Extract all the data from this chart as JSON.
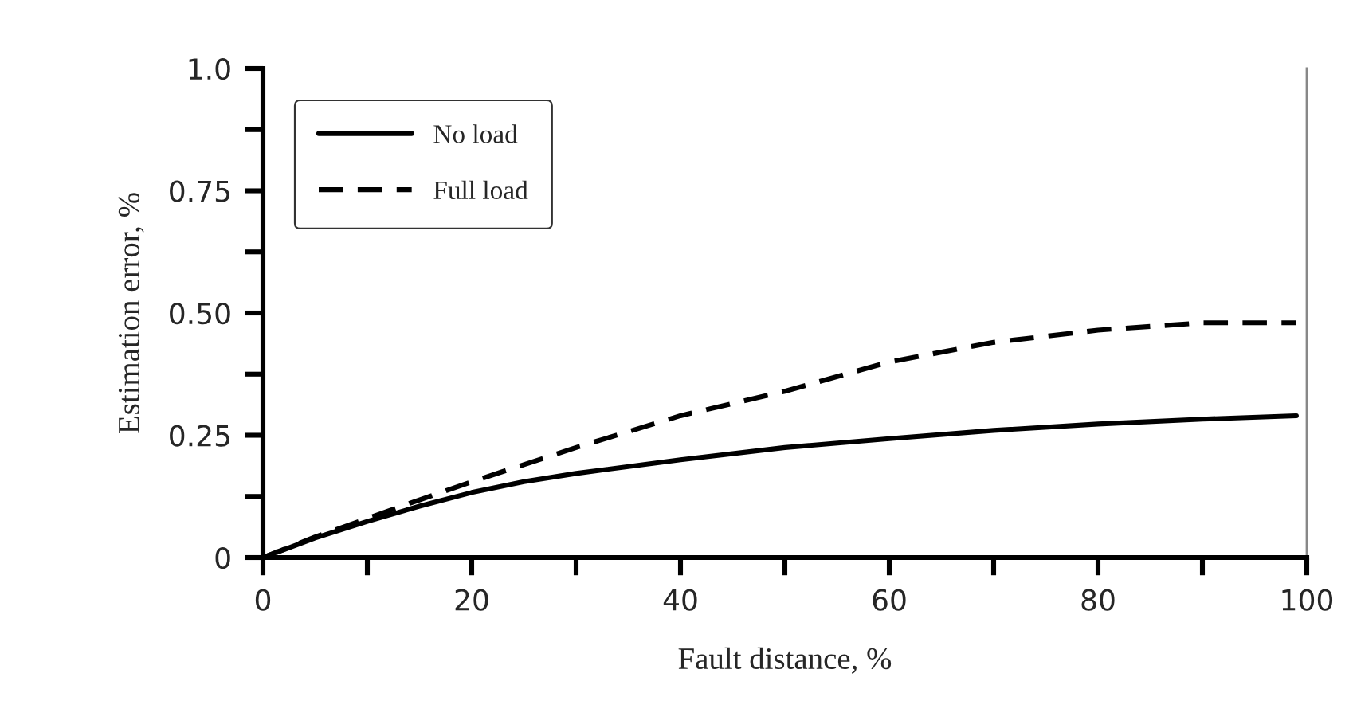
{
  "chart_data": {
    "type": "line",
    "xlabel": "Fault distance, %",
    "ylabel": "Estimation error, %",
    "xlim": [
      0,
      100
    ],
    "ylim": [
      0,
      1.0
    ],
    "xticks": [
      0,
      {
        "value": 10,
        "label": null
      },
      20,
      {
        "value": 30,
        "label": null
      },
      40,
      {
        "value": 50,
        "label": null
      },
      60,
      {
        "value": 70,
        "label": null
      },
      80,
      {
        "value": 90,
        "label": null
      },
      100
    ],
    "yticks": [
      0,
      {
        "value": 0.125,
        "label": null
      },
      0.25,
      {
        "value": 0.375,
        "label": null
      },
      {
        "value": 0.5,
        "label": "0.50"
      },
      {
        "value": 0.625,
        "label": null
      },
      0.75,
      {
        "value": 0.875,
        "label": null
      },
      {
        "value": 1.0,
        "label": "1.0"
      }
    ],
    "x": [
      0,
      5,
      10,
      15,
      20,
      25,
      30,
      40,
      50,
      60,
      70,
      80,
      90,
      99
    ],
    "series": [
      {
        "name": "No load",
        "color": "#000000",
        "line_style": "solid",
        "values": [
          0,
          0.04,
          0.074,
          0.105,
          0.133,
          0.155,
          0.172,
          0.2,
          0.225,
          0.243,
          0.26,
          0.273,
          0.283,
          0.29
        ]
      },
      {
        "name": "Full load",
        "color": "#000000",
        "line_style": "dashed",
        "values": [
          0,
          0.042,
          0.08,
          0.118,
          0.155,
          0.19,
          0.225,
          0.29,
          0.34,
          0.4,
          0.44,
          0.465,
          0.48,
          0.48
        ]
      }
    ],
    "legend": "top left",
    "grid": false,
    "marker": "none"
  }
}
